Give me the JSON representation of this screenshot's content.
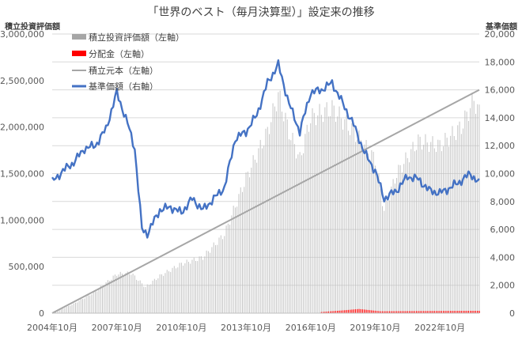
{
  "chart_data": {
    "type": "bar",
    "title": "「世界のベスト（毎月決算型）」設定来の推移",
    "y_left_label": "積立投資評価額",
    "y_right_label": "基準価額",
    "y_left_ticks": [
      "0",
      "500,000",
      "1,000,000",
      "1,500,000",
      "2,000,000",
      "2,500,000",
      "3,000,000"
    ],
    "y_right_ticks": [
      "0",
      "2,000",
      "4,000",
      "6,000",
      "8,000",
      "10,000",
      "12,000",
      "14,000",
      "16,000",
      "18,000",
      "20,000"
    ],
    "x_tick_labels": [
      "2004年10月",
      "2007年10月",
      "2010年10月",
      "2013年10月",
      "2016年10月",
      "2019年10月",
      "2022年10月"
    ],
    "x_range": [
      "2004-10",
      "2024-08"
    ],
    "y_left_range": [
      0,
      3000000
    ],
    "y_right_range": [
      0,
      20000
    ],
    "grid": "horizontal",
    "legend": {
      "position": "top-left",
      "items": [
        {
          "label": "積立投資評価額（左軸）",
          "color": "#a6a6a6",
          "kind": "bar"
        },
        {
          "label": "分配金（左軸）",
          "color": "#ff0000",
          "kind": "bar"
        },
        {
          "label": "積立元本（左軸）",
          "color": "#a6a6a6",
          "kind": "line"
        },
        {
          "label": "基準価額（右軸）",
          "color": "#4472c4",
          "kind": "line"
        }
      ]
    },
    "series": [
      {
        "name": "基準価額（右軸）",
        "axis": "right",
        "type": "line",
        "color": "#4472c4",
        "points": [
          [
            "2004-10",
            9400
          ],
          [
            "2005-04",
            10200
          ],
          [
            "2005-10",
            10800
          ],
          [
            "2006-04",
            11800
          ],
          [
            "2006-10",
            12000
          ],
          [
            "2007-04",
            13200
          ],
          [
            "2007-10",
            15800
          ],
          [
            "2008-04",
            13600
          ],
          [
            "2008-08",
            11800
          ],
          [
            "2008-12",
            6000
          ],
          [
            "2009-03",
            5700
          ],
          [
            "2009-10",
            7400
          ],
          [
            "2010-04",
            7600
          ],
          [
            "2010-10",
            7200
          ],
          [
            "2011-04",
            8200
          ],
          [
            "2011-10",
            7400
          ],
          [
            "2012-04",
            8200
          ],
          [
            "2012-10",
            9000
          ],
          [
            "2013-04",
            12500
          ],
          [
            "2013-10",
            13000
          ],
          [
            "2014-04",
            14200
          ],
          [
            "2014-10",
            16500
          ],
          [
            "2015-04",
            17800
          ],
          [
            "2015-10",
            15000
          ],
          [
            "2016-04",
            13000
          ],
          [
            "2016-10",
            15800
          ],
          [
            "2017-04",
            16000
          ],
          [
            "2017-10",
            16500
          ],
          [
            "2018-04",
            15000
          ],
          [
            "2018-10",
            13500
          ],
          [
            "2019-04",
            11500
          ],
          [
            "2019-10",
            10200
          ],
          [
            "2020-03",
            8200
          ],
          [
            "2020-10",
            8800
          ],
          [
            "2021-04",
            9800
          ],
          [
            "2021-10",
            9600
          ],
          [
            "2022-04",
            8800
          ],
          [
            "2022-10",
            8600
          ],
          [
            "2023-04",
            9000
          ],
          [
            "2023-10",
            9500
          ],
          [
            "2024-03",
            10000
          ],
          [
            "2024-08",
            9300
          ]
        ]
      },
      {
        "name": "積立元本（左軸）",
        "axis": "left",
        "type": "line",
        "color": "#a6a6a6",
        "points": [
          [
            "2004-10",
            0
          ],
          [
            "2024-08",
            2400000
          ]
        ]
      },
      {
        "name": "積立投資評価額（左軸）",
        "axis": "left",
        "type": "bar",
        "color": "#bfbfbf",
        "note_monthly_bars": true,
        "points": [
          [
            "2004-10",
            0
          ],
          [
            "2005-10",
            100000
          ],
          [
            "2006-10",
            230000
          ],
          [
            "2007-10",
            420000
          ],
          [
            "2008-06",
            430000
          ],
          [
            "2009-02",
            280000
          ],
          [
            "2009-10",
            400000
          ],
          [
            "2010-10",
            530000
          ],
          [
            "2011-10",
            600000
          ],
          [
            "2012-10",
            850000
          ],
          [
            "2013-10",
            1450000
          ],
          [
            "2014-10",
            1950000
          ],
          [
            "2015-04",
            2350000
          ],
          [
            "2015-10",
            1950000
          ],
          [
            "2016-04",
            1650000
          ],
          [
            "2016-10",
            2100000
          ],
          [
            "2017-10",
            2200000
          ],
          [
            "2018-10",
            1950000
          ],
          [
            "2019-10",
            1650000
          ],
          [
            "2020-03",
            1100000
          ],
          [
            "2020-10",
            1500000
          ],
          [
            "2021-10",
            1850000
          ],
          [
            "2022-10",
            1800000
          ],
          [
            "2023-10",
            2000000
          ],
          [
            "2024-05",
            2300000
          ],
          [
            "2024-08",
            2150000
          ]
        ]
      },
      {
        "name": "分配金（左軸）",
        "axis": "left",
        "type": "bar",
        "color": "#ff0000",
        "points": [
          [
            "2017-04",
            12000
          ],
          [
            "2018-04",
            30000
          ],
          [
            "2019-01",
            45000
          ],
          [
            "2020-01",
            20000
          ],
          [
            "2024-08",
            25000
          ]
        ]
      }
    ]
  }
}
